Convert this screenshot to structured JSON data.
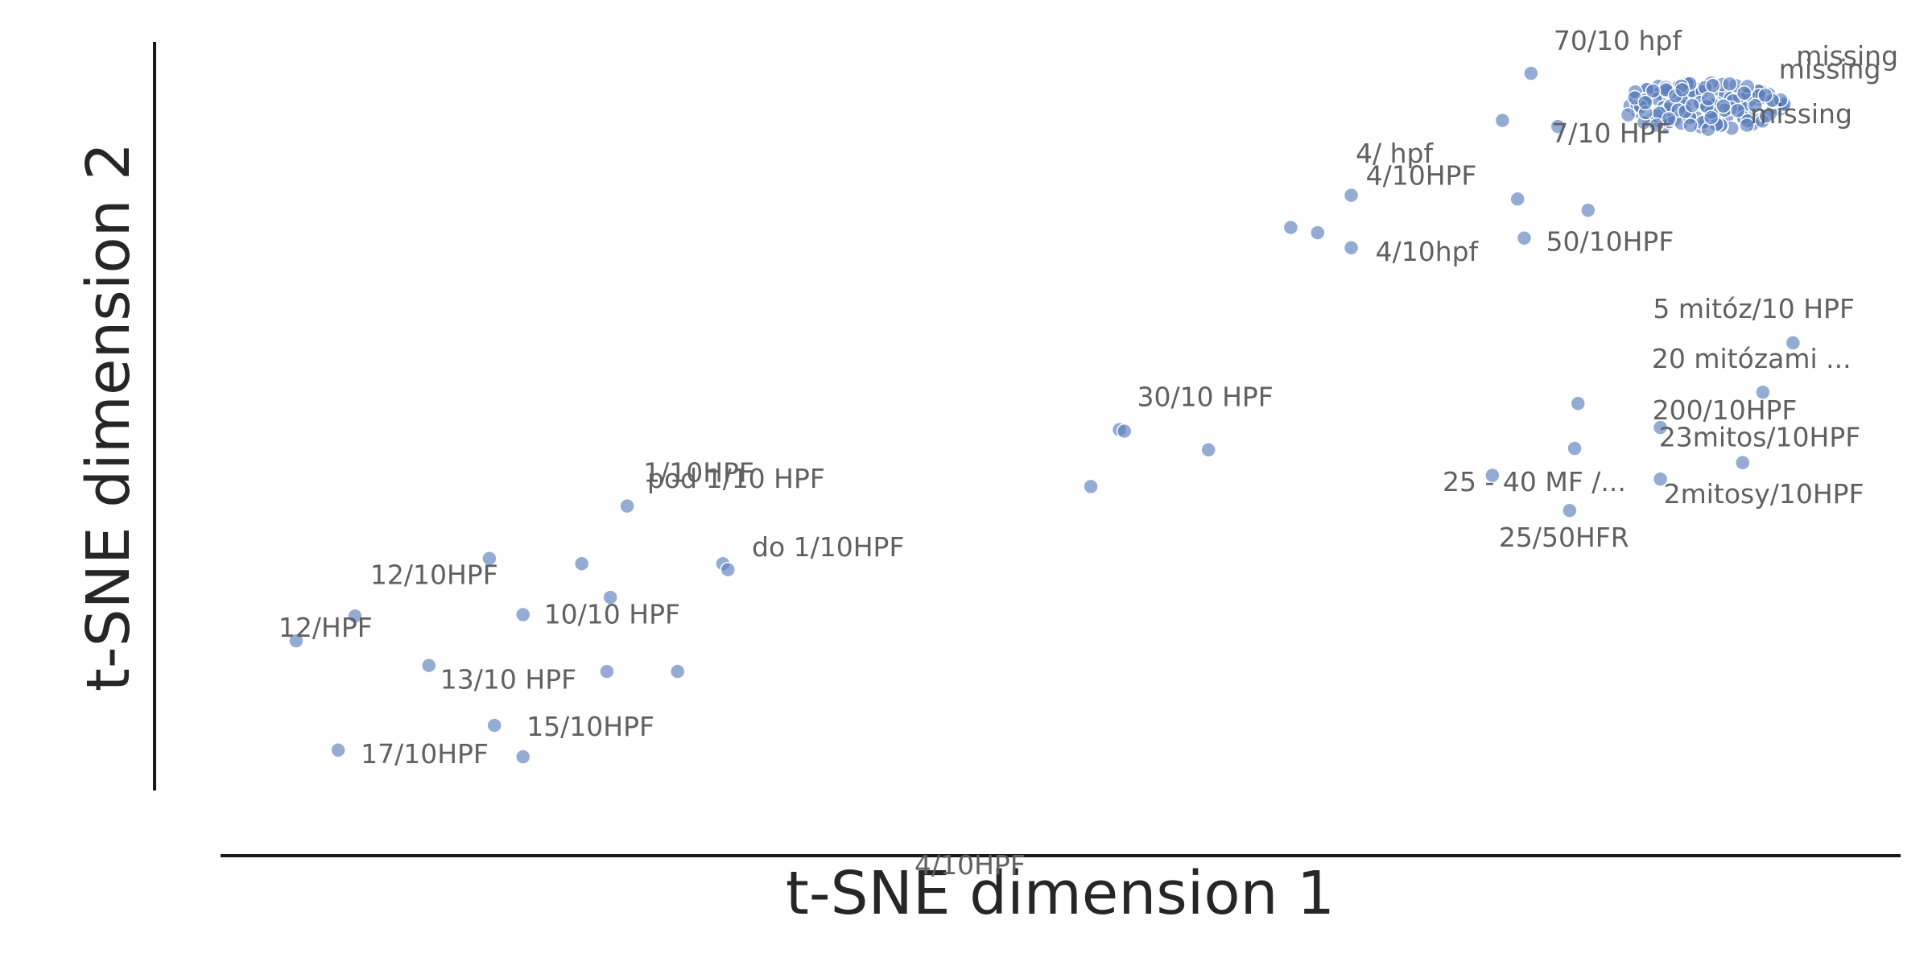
{
  "chart_data": {
    "type": "scatter",
    "title": "",
    "xlabel": "t-SNE dimension 1",
    "ylabel": "t-SNE dimension 2",
    "xlim": [
      0,
      100
    ],
    "ylim": [
      0,
      100
    ],
    "grid": false,
    "legend": "none",
    "point_color": "#5b7fbd",
    "label_color": "#606060",
    "series": [
      {
        "points": [
          {
            "x": 4.5,
            "y": 20.0,
            "label": "12/HPF"
          },
          {
            "x": 8.0,
            "y": 23.3,
            "label": ""
          },
          {
            "x": 16.0,
            "y": 31.0,
            "label": "12/10HPF"
          },
          {
            "x": 18.0,
            "y": 23.5,
            "label": "10/10 HPF"
          },
          {
            "x": 21.5,
            "y": 30.3,
            "label": ""
          },
          {
            "x": 23.2,
            "y": 25.8,
            "label": ""
          },
          {
            "x": 24.2,
            "y": 38.0,
            "label": "1/10HPF"
          },
          {
            "x": 29.9,
            "y": 30.3,
            "label": "do 1/10HPF"
          },
          {
            "x": 30.2,
            "y": 29.5,
            "label": ""
          },
          {
            "x": 12.4,
            "y": 16.7,
            "label": "13/10  HPF"
          },
          {
            "x": 23.0,
            "y": 15.9,
            "label": ""
          },
          {
            "x": 27.2,
            "y": 15.9,
            "label": ""
          },
          {
            "x": 16.3,
            "y": 8.7,
            "label": "15/10HPF"
          },
          {
            "x": 7.0,
            "y": 5.4,
            "label": "17/10HPF"
          },
          {
            "x": 18.0,
            "y": 4.5,
            "label": ""
          },
          {
            "x": 53.5,
            "y": 48.2,
            "label": "30/10 HPF"
          },
          {
            "x": 53.8,
            "y": 48.0,
            "label": ""
          },
          {
            "x": 58.8,
            "y": 45.5,
            "label": ""
          },
          {
            "x": 51.8,
            "y": 40.6,
            "label": ""
          },
          {
            "x": 63.7,
            "y": 75.2,
            "label": ""
          },
          {
            "x": 65.3,
            "y": 74.5,
            "label": ""
          },
          {
            "x": 67.3,
            "y": 79.5,
            "label": "4/10HPF"
          },
          {
            "x": 67.3,
            "y": 72.5,
            "label": "4/10hpf"
          },
          {
            "x": 76.3,
            "y": 89.5,
            "label": ""
          },
          {
            "x": 78.0,
            "y": 95.8,
            "label": "70/10 hpf"
          },
          {
            "x": 79.6,
            "y": 88.7,
            "label": "7/10 HPF"
          },
          {
            "x": 77.2,
            "y": 79.0,
            "label": ""
          },
          {
            "x": 81.4,
            "y": 77.5,
            "label": ""
          },
          {
            "x": 77.6,
            "y": 73.8,
            "label": "50/10HPF"
          },
          {
            "x": 86.6,
            "y": 92.8,
            "label": "missing"
          },
          {
            "x": 87.0,
            "y": 93.6,
            "label": "missing"
          },
          {
            "x": 87.6,
            "y": 91.5,
            "label": "missing"
          },
          {
            "x": 93.6,
            "y": 59.8,
            "label": "5 mitóz/10 HPF"
          },
          {
            "x": 91.8,
            "y": 53.2,
            "label": "20 mitózami ..."
          },
          {
            "x": 80.8,
            "y": 51.7,
            "label": ""
          },
          {
            "x": 85.7,
            "y": 48.5,
            "label": "200/10HPF"
          },
          {
            "x": 80.6,
            "y": 45.7,
            "label": ""
          },
          {
            "x": 90.6,
            "y": 43.8,
            "label": "23mitos/10HPF"
          },
          {
            "x": 75.7,
            "y": 42.1,
            "label": ""
          },
          {
            "x": 85.7,
            "y": 41.6,
            "label": "2mitosy/10HPF"
          },
          {
            "x": 80.3,
            "y": 37.4,
            "label": "25/50HFR"
          }
        ]
      }
    ],
    "annotations": [
      "4/ hpf",
      "4/10HPF",
      "pod 1/10 HPF",
      "25 - 40 MF /..."
    ]
  }
}
